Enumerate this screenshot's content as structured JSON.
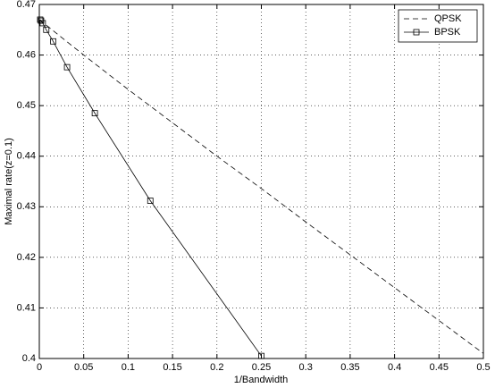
{
  "chart_data": {
    "type": "line",
    "x_label": "1/Bandwidth",
    "y_label": "Maximal rate(z=0.1)",
    "xlim": [
      0,
      0.5
    ],
    "ylim": [
      0.4,
      0.47
    ],
    "xticks": [
      0,
      0.05,
      0.1,
      0.15,
      0.2,
      0.25,
      0.3,
      0.35,
      0.4,
      0.45,
      0.5
    ],
    "yticks": [
      0.4,
      0.41,
      0.42,
      0.43,
      0.44,
      0.45,
      0.46,
      0.47
    ],
    "grid": true,
    "legend": "upper-right",
    "series": [
      {
        "name": "QPSK",
        "color": "#000000",
        "dash": true,
        "marker": false,
        "x": [
          0,
          0.05,
          0.1,
          0.15,
          0.2,
          0.25,
          0.3,
          0.35,
          0.4,
          0.45,
          0.5
        ],
        "values": [
          0.467,
          0.46,
          0.4532,
          0.4466,
          0.44,
          0.4336,
          0.427,
          0.4205,
          0.414,
          0.4075,
          0.401
        ]
      },
      {
        "name": "BPSK",
        "color": "#000000",
        "dash": false,
        "marker": true,
        "x": [
          0.000977,
          0.00195,
          0.0039,
          0.0078125,
          0.015625,
          0.03125,
          0.0625,
          0.125,
          0.25
        ],
        "values": [
          0.467,
          0.4668,
          0.4663,
          0.465,
          0.4627,
          0.4576,
          0.4485,
          0.4312,
          0.4005
        ]
      }
    ]
  }
}
